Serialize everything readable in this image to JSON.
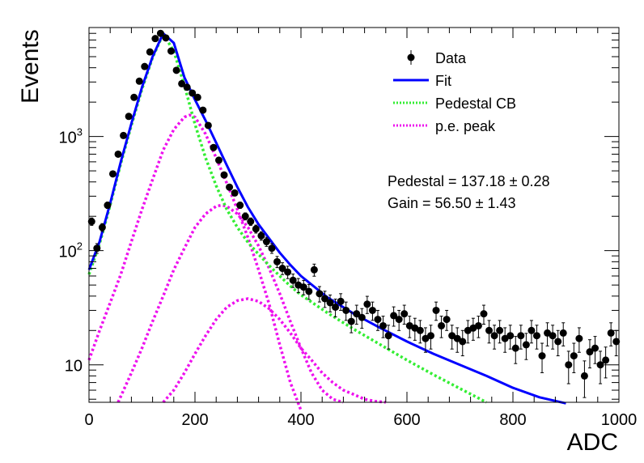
{
  "chart_data": {
    "type": "scatter",
    "xlabel": "ADC",
    "ylabel": "Events",
    "xlim": [
      0,
      1000
    ],
    "ylim": [
      4.7,
      9000
    ],
    "yscale": "log",
    "grid": false,
    "legend_position": "top-right",
    "x_ticks": [
      {
        "value": 0,
        "label": "0"
      },
      {
        "value": 200,
        "label": "200"
      },
      {
        "value": 400,
        "label": "400"
      },
      {
        "value": 600,
        "label": "600"
      },
      {
        "value": 800,
        "label": "800"
      },
      {
        "value": 1000,
        "label": "1000"
      }
    ],
    "y_ticks": [
      {
        "value": 10,
        "base": "10",
        "exp": ""
      },
      {
        "value": 100,
        "base": "10",
        "exp": "2"
      },
      {
        "value": 1000,
        "base": "10",
        "exp": "3"
      }
    ],
    "legend": [
      {
        "label": "Data",
        "style": "marker",
        "color": "#000000"
      },
      {
        "label": "Fit",
        "style": "solid",
        "color": "#0000ff"
      },
      {
        "label": "Pedestal CB",
        "style": "dotted",
        "color": "#33ee33"
      },
      {
        "label": "p.e. peak",
        "style": "dotted",
        "color": "#ee11ee"
      }
    ],
    "annotations": {
      "pedestal": "Pedestal = 137.18 ± 0.28",
      "gain": "Gain = 56.50 ± 1.43"
    },
    "fit_parameters": {
      "pedestal": 137.18,
      "gain": 56.5
    },
    "colors": {
      "data": "#000000",
      "fit": "#0000ff",
      "pedestal": "#33ee33",
      "pe_peak": "#ee11ee"
    },
    "series": [
      {
        "name": "Data",
        "x": [
          5,
          15,
          25,
          35,
          45,
          55,
          65,
          75,
          85,
          95,
          105,
          115,
          125,
          135,
          145,
          155,
          165,
          175,
          185,
          195,
          205,
          215,
          225,
          235,
          245,
          255,
          265,
          275,
          285,
          295,
          305,
          315,
          325,
          335,
          345,
          355,
          365,
          375,
          385,
          395,
          405,
          415,
          425,
          435,
          445,
          455,
          465,
          475,
          485,
          495,
          505,
          515,
          525,
          535,
          545,
          555,
          565,
          575,
          585,
          595,
          605,
          615,
          625,
          635,
          645,
          655,
          665,
          675,
          685,
          695,
          705,
          715,
          725,
          735,
          745,
          755,
          765,
          775,
          785,
          795,
          805,
          815,
          825,
          835,
          845,
          855,
          865,
          875,
          885,
          895,
          905,
          915,
          925,
          935,
          945,
          955,
          965,
          975,
          985,
          995
        ],
        "y": [
          180,
          105,
          160,
          250,
          470,
          700,
          1020,
          1500,
          2200,
          3050,
          4100,
          5500,
          7200,
          8000,
          7300,
          5600,
          3800,
          2900,
          2700,
          2400,
          2200,
          1700,
          1250,
          800,
          620,
          460,
          360,
          320,
          250,
          200,
          180,
          155,
          135,
          120,
          105,
          80,
          70,
          65,
          55,
          50,
          48,
          44,
          68,
          42,
          38,
          35,
          32,
          36,
          30,
          24,
          28,
          26,
          34,
          30,
          25,
          22,
          18,
          27,
          25,
          28,
          22,
          21,
          20,
          17,
          18,
          30,
          22,
          25,
          18,
          17,
          16,
          20,
          21,
          22,
          28,
          20,
          18,
          20,
          17,
          18,
          14,
          18,
          15,
          20,
          18,
          12,
          19,
          18,
          16,
          19,
          10,
          12,
          17,
          8,
          13,
          14,
          10,
          11,
          19,
          16
        ]
      },
      {
        "name": "Fit",
        "x": [
          0,
          20,
          40,
          60,
          80,
          100,
          120,
          140,
          160,
          180,
          200,
          220,
          240,
          260,
          280,
          300,
          320,
          340,
          360,
          380,
          400,
          450,
          500,
          550,
          600,
          650,
          700,
          750,
          800,
          850,
          900
        ],
        "y": [
          68,
          120,
          260,
          600,
          1300,
          2700,
          5000,
          8000,
          6600,
          3300,
          2100,
          1380,
          880,
          560,
          360,
          240,
          170,
          128,
          96,
          75,
          60,
          39,
          28,
          21,
          16,
          12.5,
          10,
          8,
          6.3,
          5.2,
          4.6
        ]
      },
      {
        "name": "Pedestal CB",
        "x": [
          0,
          20,
          40,
          60,
          80,
          100,
          120,
          140,
          160,
          180,
          200,
          220,
          240,
          260,
          280,
          300,
          320,
          340,
          360,
          380,
          400,
          450,
          500,
          550,
          600,
          650,
          700,
          750
        ],
        "y": [
          62,
          115,
          250,
          580,
          1250,
          2600,
          4900,
          7900,
          5600,
          2800,
          1280,
          650,
          370,
          230,
          160,
          118,
          93,
          74,
          60,
          49,
          41,
          28.5,
          20.5,
          15,
          11,
          8.2,
          6.2,
          4.7
        ]
      },
      {
        "name": "p.e. peak",
        "x": [
          0,
          20,
          40,
          60,
          80,
          100,
          120,
          140,
          160,
          180,
          190,
          200,
          220,
          240,
          260,
          280,
          300,
          320,
          340,
          360,
          380,
          400
        ],
        "y": [
          11,
          20,
          35,
          62,
          120,
          230,
          420,
          760,
          1150,
          1480,
          1540,
          1480,
          1050,
          650,
          390,
          230,
          130,
          68,
          34,
          15,
          7,
          4
        ]
      },
      {
        "name": "p.e. peak 2",
        "x": [
          55,
          80,
          100,
          120,
          140,
          160,
          180,
          200,
          220,
          240,
          250,
          260,
          280,
          300,
          320,
          340,
          360,
          380,
          400,
          420,
          440,
          460,
          480
        ],
        "y": [
          4.7,
          8.5,
          14,
          24,
          40,
          68,
          105,
          160,
          210,
          245,
          250,
          245,
          210,
          160,
          110,
          70,
          42,
          24,
          14,
          8.5,
          6,
          5,
          4.7
        ]
      },
      {
        "name": "p.e. peak 3",
        "x": [
          140,
          160,
          180,
          200,
          220,
          240,
          260,
          280,
          300,
          320,
          340,
          360,
          380,
          400,
          420,
          440,
          460,
          480,
          500,
          520,
          540,
          560
        ],
        "y": [
          4.7,
          6,
          8.5,
          12.5,
          18,
          25,
          32,
          36.5,
          38,
          36,
          31,
          25,
          19,
          14,
          11,
          8.5,
          7,
          6,
          5.5,
          5,
          4.8,
          4.7
        ]
      }
    ]
  }
}
